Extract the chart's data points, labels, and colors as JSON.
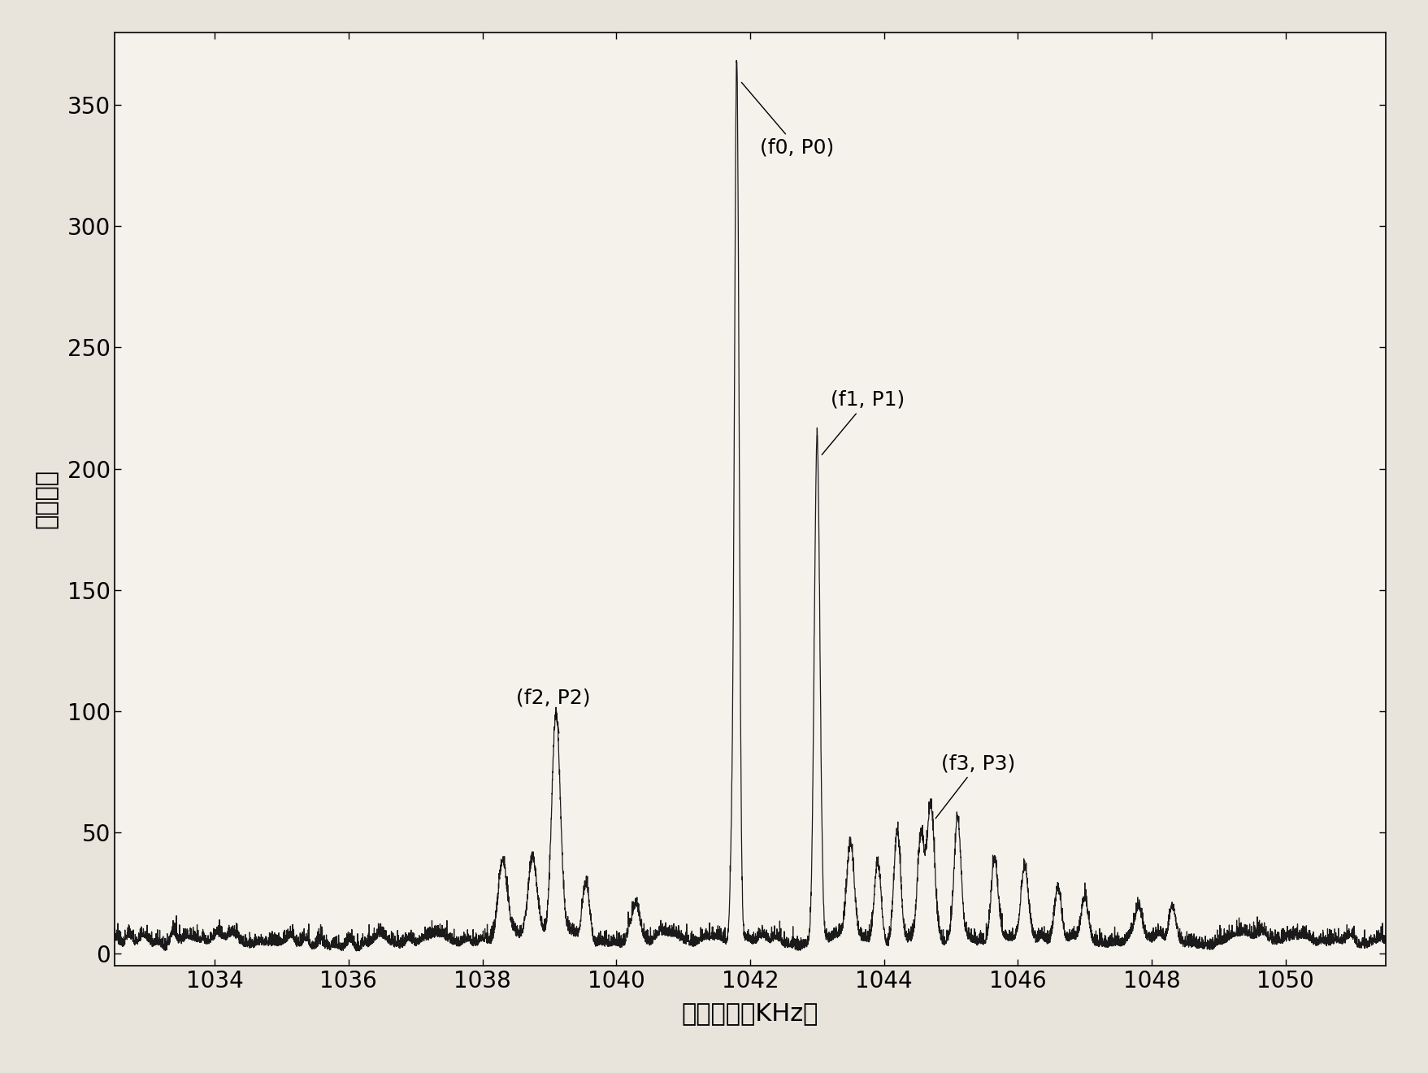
{
  "title": "",
  "xlabel": "信号频率（KHz）",
  "ylabel": "信号功率",
  "xlim": [
    1032.5,
    1051.5
  ],
  "ylim": [
    -5,
    380
  ],
  "yticks": [
    0,
    50,
    100,
    150,
    200,
    250,
    300,
    350
  ],
  "xticks": [
    1034,
    1036,
    1038,
    1040,
    1042,
    1044,
    1046,
    1048,
    1050
  ],
  "line_color": "#1a1a1a",
  "background_color": "#e8e4dc",
  "axes_bg_color": "#f5f2ec",
  "f0": 1041.8,
  "P0": 365,
  "f1": 1043.0,
  "P1": 208,
  "f2": 1039.1,
  "P2": 93,
  "f3": 1044.7,
  "P3": 58,
  "annotation_f0": "(f0, P0)",
  "annotation_f1": "(f1, P1)",
  "annotation_f2": "(f2, P2)",
  "annotation_f3": "(f3, P3)",
  "fontsize_label": 22,
  "fontsize_tick": 20,
  "fontsize_annot": 18
}
